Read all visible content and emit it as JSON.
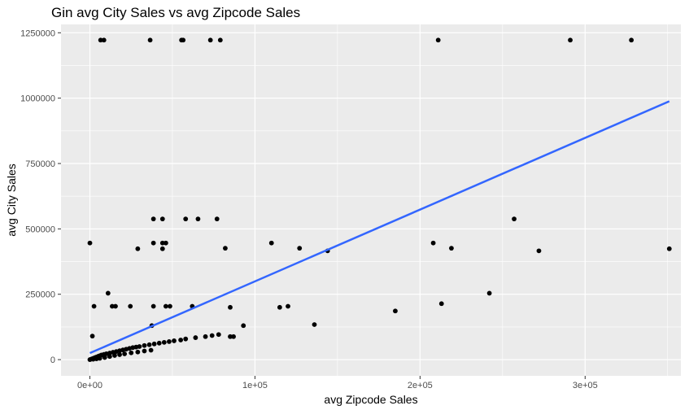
{
  "chart_data": {
    "type": "scatter",
    "title": "Gin avg City Sales vs avg Zipcode Sales",
    "xlabel": "avg Zipcode Sales",
    "ylabel": "avg City Sales",
    "xlim": [
      -17500,
      358000
    ],
    "ylim": [
      -62000,
      1282000
    ],
    "x_ticks": [
      0,
      100000,
      200000,
      300000
    ],
    "x_tick_labels": [
      "0e+00",
      "1e+05",
      "2e+05",
      "3e+05"
    ],
    "y_ticks": [
      0,
      250000,
      500000,
      750000,
      1000000,
      1250000
    ],
    "y_tick_labels": [
      "0",
      "250000",
      "500000",
      "750000",
      "1000000",
      "1250000"
    ],
    "grid": true,
    "colors": {
      "panel": "#ebebeb",
      "grid_major": "#ffffff",
      "points": "#000000",
      "trend_line": "#3366ff"
    },
    "trend_line": {
      "x": [
        0,
        351000
      ],
      "y": [
        25000,
        988000
      ]
    },
    "points": [
      [
        6500,
        1222000
      ],
      [
        8500,
        1222000
      ],
      [
        36500,
        1222000
      ],
      [
        55500,
        1222000
      ],
      [
        56500,
        1222000
      ],
      [
        73000,
        1222000
      ],
      [
        79000,
        1222000
      ],
      [
        211000,
        1222000
      ],
      [
        291000,
        1222000
      ],
      [
        328000,
        1222000
      ],
      [
        38500,
        538000
      ],
      [
        44000,
        538000
      ],
      [
        58000,
        538000
      ],
      [
        65500,
        538000
      ],
      [
        77000,
        538000
      ],
      [
        257000,
        538000
      ],
      [
        0,
        446000
      ],
      [
        38500,
        446000
      ],
      [
        44000,
        446000
      ],
      [
        46000,
        446000
      ],
      [
        110000,
        446000
      ],
      [
        208000,
        446000
      ],
      [
        44000,
        424000
      ],
      [
        29000,
        424000
      ],
      [
        82000,
        426000
      ],
      [
        127000,
        426000
      ],
      [
        219000,
        426000
      ],
      [
        144000,
        416000
      ],
      [
        272000,
        416000
      ],
      [
        351000,
        424000
      ],
      [
        11000,
        254000
      ],
      [
        242000,
        254000
      ],
      [
        2500,
        204000
      ],
      [
        13500,
        204000
      ],
      [
        15500,
        204000
      ],
      [
        24500,
        204000
      ],
      [
        38500,
        204000
      ],
      [
        46000,
        204000
      ],
      [
        48500,
        204000
      ],
      [
        62000,
        204000
      ],
      [
        85000,
        200000
      ],
      [
        115000,
        200000
      ],
      [
        120000,
        204000
      ],
      [
        213000,
        214000
      ],
      [
        185000,
        186000
      ],
      [
        37500,
        130000
      ],
      [
        93000,
        130000
      ],
      [
        136000,
        134000
      ],
      [
        1500,
        90000
      ],
      [
        85000,
        88000
      ],
      [
        87000,
        88000
      ],
      [
        0,
        0
      ],
      [
        1000,
        2500
      ],
      [
        2000,
        5000
      ],
      [
        3000,
        7500
      ],
      [
        4000,
        10000
      ],
      [
        5000,
        12500
      ],
      [
        6000,
        15000
      ],
      [
        7000,
        17500
      ],
      [
        8500,
        20000
      ],
      [
        10000,
        22500
      ],
      [
        12000,
        25000
      ],
      [
        14000,
        28000
      ],
      [
        16000,
        31000
      ],
      [
        18000,
        34000
      ],
      [
        20000,
        37000
      ],
      [
        22000,
        40000
      ],
      [
        24000,
        43000
      ],
      [
        26000,
        46000
      ],
      [
        28000,
        48000
      ],
      [
        30000,
        50000
      ],
      [
        33000,
        54000
      ],
      [
        36000,
        57000
      ],
      [
        39000,
        60000
      ],
      [
        42000,
        63000
      ],
      [
        45000,
        66000
      ],
      [
        48000,
        69000
      ],
      [
        51000,
        72000
      ],
      [
        55000,
        75000
      ],
      [
        58000,
        79000
      ],
      [
        64000,
        84000
      ],
      [
        70000,
        88000
      ],
      [
        74000,
        92000
      ],
      [
        78000,
        96000
      ],
      [
        2000,
        1500
      ],
      [
        4000,
        3000
      ],
      [
        6000,
        5000
      ],
      [
        9000,
        8000
      ],
      [
        12000,
        12000
      ],
      [
        15000,
        16000
      ],
      [
        18000,
        19000
      ],
      [
        21000,
        22000
      ],
      [
        25000,
        26000
      ],
      [
        29000,
        29000
      ],
      [
        33000,
        33000
      ],
      [
        37000,
        36000
      ]
    ]
  }
}
